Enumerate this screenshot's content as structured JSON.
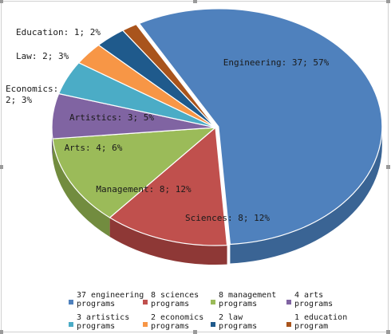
{
  "chart_data": {
    "type": "pie",
    "slices": [
      {
        "label": "Engineering: 37; 57%",
        "value": 37,
        "percent": 57,
        "color": "#4f81bd",
        "side": "#3a6494",
        "legend": [
          "37 engineering",
          "programs"
        ]
      },
      {
        "label": "Sciences: 8; 12%",
        "value": 8,
        "percent": 12,
        "color": "#c0504d",
        "side": "#8e3836",
        "legend": [
          "8 sciences",
          "programs"
        ]
      },
      {
        "label": "Management: 8; 12%",
        "value": 8,
        "percent": 12,
        "color": "#9bbb59",
        "side": "#728c3f",
        "legend": [
          "8 management",
          "programs"
        ]
      },
      {
        "label": "Arts: 4; 6%",
        "value": 4,
        "percent": 6,
        "color": "#8064a2",
        "side": "#5e4a79",
        "legend": [
          "4 arts",
          "programs"
        ]
      },
      {
        "label": "Artistics: 3; 5%",
        "value": 3,
        "percent": 5,
        "color": "#4bacc6",
        "side": "#367f93",
        "legend": [
          "3 artistics",
          "programs"
        ]
      },
      {
        "label": "Economics: 2; 3%",
        "label_lines": [
          "Economics:",
          "2; 3%"
        ],
        "value": 2,
        "percent": 3,
        "color": "#f79646",
        "side": "#b96f31",
        "legend": [
          "2 economics",
          "programs"
        ]
      },
      {
        "label": "Law: 2; 3%",
        "value": 2,
        "percent": 3,
        "color": "#1f5a8c",
        "side": "#163f63",
        "legend": [
          "2 law",
          "programs"
        ]
      },
      {
        "label": "Education: 1; 2%",
        "value": 1,
        "percent": 2,
        "color": "#a9541c",
        "side": "#7a3c14",
        "legend": [
          "1 education",
          "program"
        ]
      }
    ],
    "legend_position": "bottom"
  }
}
